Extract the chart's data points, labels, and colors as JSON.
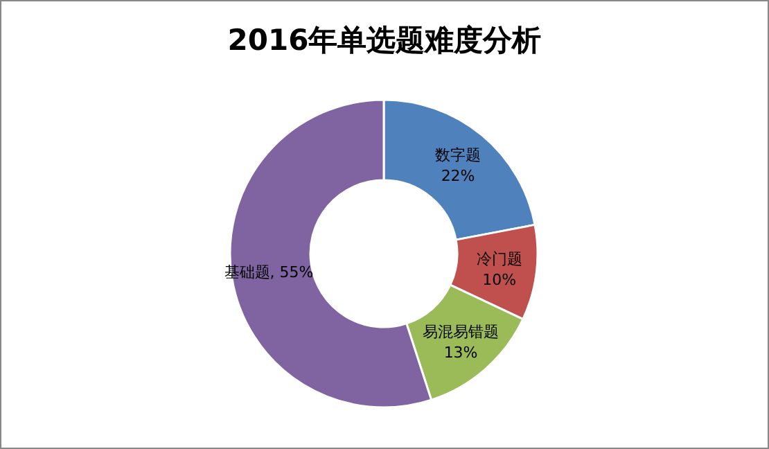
{
  "chart_data": {
    "type": "donut",
    "title": "2016年单选题难度分析",
    "categories": [
      "数字题",
      "冷门题",
      "易混易错题",
      "基础题"
    ],
    "values": [
      22,
      10,
      13,
      55
    ],
    "value_labels": [
      "22%",
      "10%",
      "13%",
      "55%"
    ],
    "colors": [
      "#4f81bd",
      "#c0504d",
      "#9bbb59",
      "#8064a2"
    ],
    "legend": false
  }
}
